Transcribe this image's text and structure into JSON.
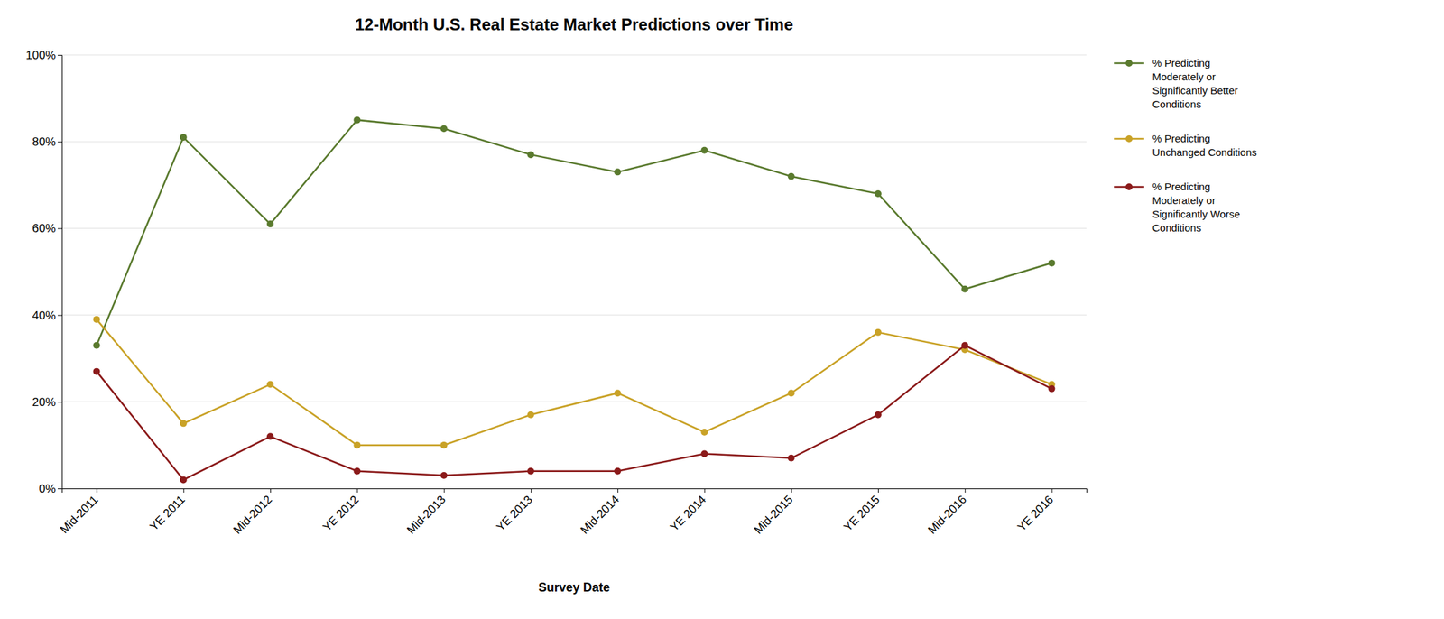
{
  "chart_data": {
    "type": "line",
    "title": "12-Month U.S. Real Estate Market Predictions over Time",
    "xlabel": "Survey Date",
    "categories": [
      "Mid-2011",
      "YE 2011",
      "Mid-2012",
      "YE 2012",
      "Mid-2013",
      "YE 2013",
      "Mid-2014",
      "YE 2014",
      "Mid-2015",
      "YE 2015",
      "Mid-2016",
      "YE 2016"
    ],
    "series": [
      {
        "name": "% Predicting\nModerately or\nSignificantly Better\nConditions",
        "color": "#5a7a2e",
        "marker": "circle",
        "values": [
          33,
          81,
          61,
          85,
          83,
          77,
          73,
          78,
          72,
          68,
          46,
          52
        ]
      },
      {
        "name": "% Predicting\nUnchanged Conditions",
        "color": "#c9a227",
        "marker": "circle",
        "values": [
          39,
          15,
          24,
          10,
          10,
          17,
          22,
          13,
          22,
          36,
          32,
          24
        ]
      },
      {
        "name": "% Predicting\nModerately or\nSignificantly Worse\nConditions",
        "color": "#8b1a1a",
        "marker": "circle",
        "values": [
          27,
          2,
          12,
          4,
          3,
          4,
          4,
          8,
          7,
          17,
          33,
          23
        ]
      }
    ],
    "ylim": [
      0,
      100
    ],
    "yticks": [
      {
        "value": 0,
        "label": "0%"
      },
      {
        "value": 20,
        "label": "20%"
      },
      {
        "value": 40,
        "label": "40%"
      },
      {
        "value": 60,
        "label": "60%"
      },
      {
        "value": 80,
        "label": "80%"
      },
      {
        "value": 100,
        "label": "100%"
      }
    ],
    "grid": true,
    "legend": "right"
  }
}
